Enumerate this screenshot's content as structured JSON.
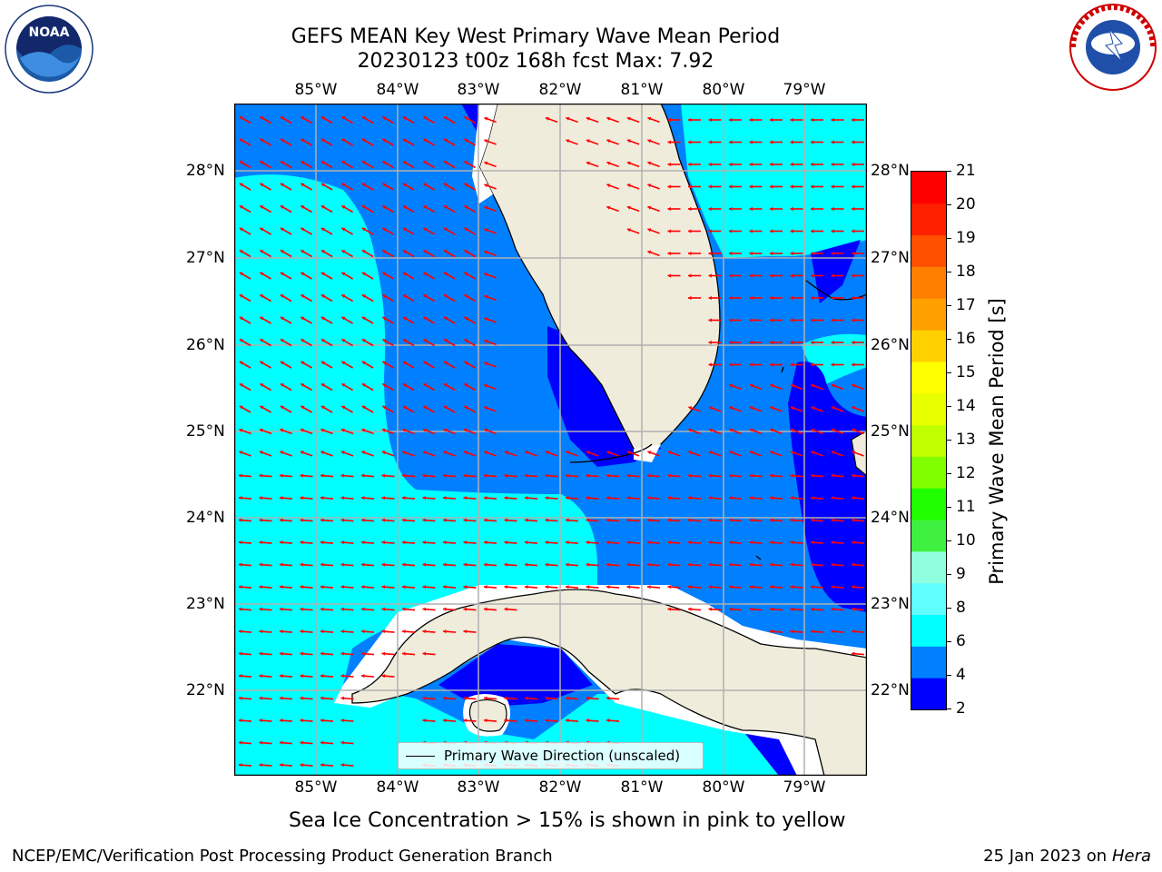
{
  "title": {
    "line1": "GEFS MEAN Key West Primary Wave Mean Period",
    "line2": "20230123 t00z 168h fcst   Max: 7.92"
  },
  "logos": {
    "left": {
      "name": "noaa-logo",
      "text": "NOAA",
      "ring": "NATIONAL OCEANIC AND ATMOSPHERIC ADMINISTRATION · U.S. DEPARTMENT OF COMMERCE"
    },
    "right": {
      "name": "nws-logo",
      "ring": "NATIONAL WEATHER SERVICE"
    }
  },
  "map": {
    "lon_labels": [
      "85°W",
      "84°W",
      "83°W",
      "82°W",
      "81°W",
      "80°W",
      "79°W"
    ],
    "lat_labels": [
      "28°N",
      "27°N",
      "26°N",
      "25°N",
      "24°N",
      "23°N",
      "22°N"
    ],
    "legend": "Primary Wave Direction (unscaled)",
    "vector_color": "#ff0000",
    "land_color": "#efecdc",
    "grid_color": "#b0b0b0"
  },
  "colorbar": {
    "label": "Primary Wave Mean Period [s]",
    "ticks": [
      "21",
      "20",
      "19",
      "18",
      "17",
      "16",
      "15",
      "14",
      "13",
      "12",
      "11",
      "10",
      "9",
      "8",
      "6",
      "4",
      "2"
    ],
    "colors": [
      "#0000ff",
      "#0080ff",
      "#00ffff",
      "#60ffff",
      "#90ffe0",
      "#40f040",
      "#20ff00",
      "#80ff00",
      "#c0ff00",
      "#e8ff00",
      "#ffff00",
      "#ffd000",
      "#ffa000",
      "#ff8000",
      "#ff5000",
      "#ff2000",
      "#ff0000"
    ]
  },
  "caption": "Sea Ice Concentration > 15% is shown in pink to yellow",
  "footer": {
    "left": "NCEP/EMC/Verification Post Processing Product Generation Branch",
    "right_date": "25 Jan 2023 on ",
    "right_host": "Hera"
  }
}
